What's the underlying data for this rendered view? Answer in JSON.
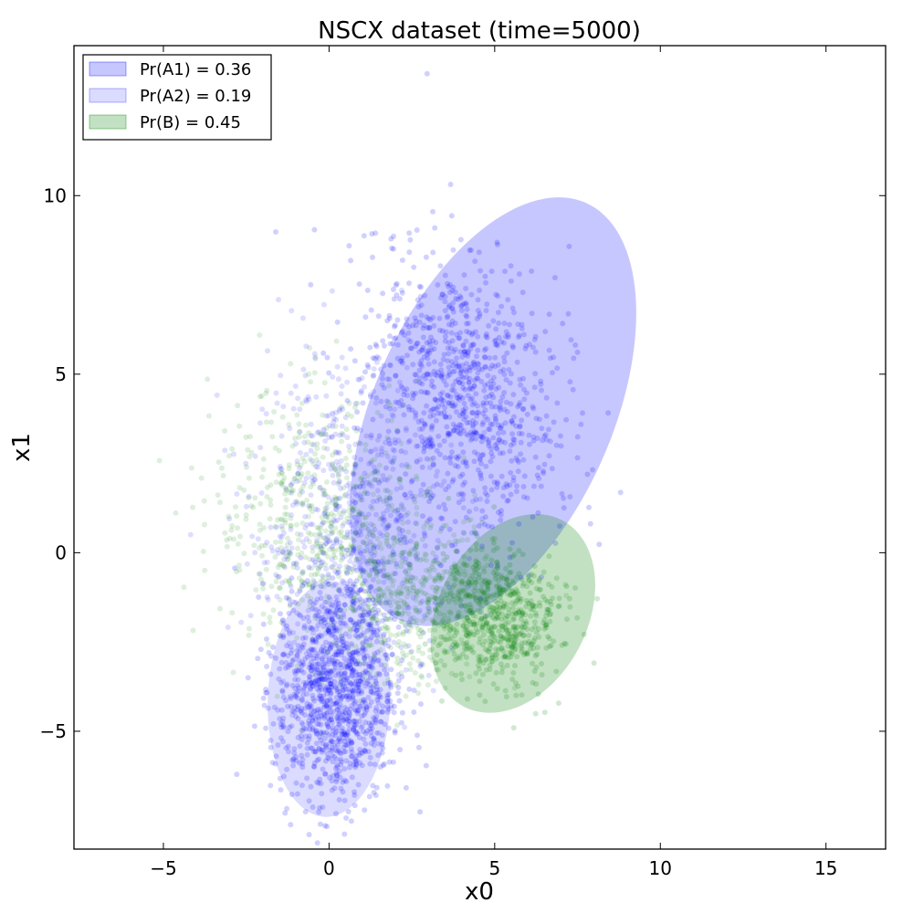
{
  "chart_data": {
    "type": "scatter",
    "title": "NSCX dataset (time=5000)",
    "xlabel": "x0",
    "ylabel": "x1",
    "xlim": [
      -7.7,
      16.8
    ],
    "ylim": [
      -8.3,
      14.2
    ],
    "x_ticks": [
      -5,
      0,
      5,
      10,
      15
    ],
    "y_ticks": [
      -5,
      0,
      5,
      10
    ],
    "x_tick_labels": [
      "−5",
      "0",
      "5",
      "10",
      "15"
    ],
    "y_tick_labels": [
      "−5",
      "0",
      "5",
      "10"
    ],
    "grid": false,
    "legend_position": "top-left",
    "series": [
      {
        "label": "Pr(A1) = 0.36",
        "color": "#0000ff",
        "ellipse": {
          "center": [
            4.95,
            3.95
          ],
          "semi_axes": [
            3.6,
            6.4
          ],
          "rotation_deg": 24,
          "fill_opacity": 0.22
        },
        "cluster": {
          "mean": [
            4.0,
            4.5
          ],
          "std": [
            1.4,
            2.0
          ],
          "rotation_deg": 24,
          "count": 900
        }
      },
      {
        "label": "Pr(A2) = 0.19",
        "color": "#0000ff",
        "ellipse": {
          "center": [
            0.0,
            -4.1
          ],
          "semi_axes": [
            1.85,
            3.3
          ],
          "rotation_deg": 2,
          "fill_opacity": 0.14
        },
        "cluster": {
          "mean": [
            0.2,
            -3.8
          ],
          "std": [
            0.9,
            1.6
          ],
          "rotation_deg": 0,
          "count": 1100
        }
      },
      {
        "label": "Pr(B) = 0.45",
        "color": "#008000",
        "ellipse": {
          "center": [
            5.55,
            -1.7
          ],
          "semi_axes": [
            2.25,
            2.95
          ],
          "rotation_deg": 28,
          "fill_opacity": 0.24
        },
        "cluster": {
          "mean": [
            5.0,
            -1.8
          ],
          "std": [
            0.9,
            1.0
          ],
          "rotation_deg": 28,
          "count": 600
        }
      }
    ],
    "diffuse_points": [
      {
        "color": "#0000ff",
        "mean": [
          0.7,
          0.8
        ],
        "std": [
          1.5,
          2.2
        ],
        "count": 700
      },
      {
        "color": "#008000",
        "mean": [
          -0.3,
          1.0
        ],
        "std": [
          1.6,
          1.8
        ],
        "count": 500
      },
      {
        "color": "#008000",
        "mean": [
          2.5,
          -1.3
        ],
        "std": [
          1.3,
          1.2
        ],
        "count": 500
      }
    ]
  }
}
